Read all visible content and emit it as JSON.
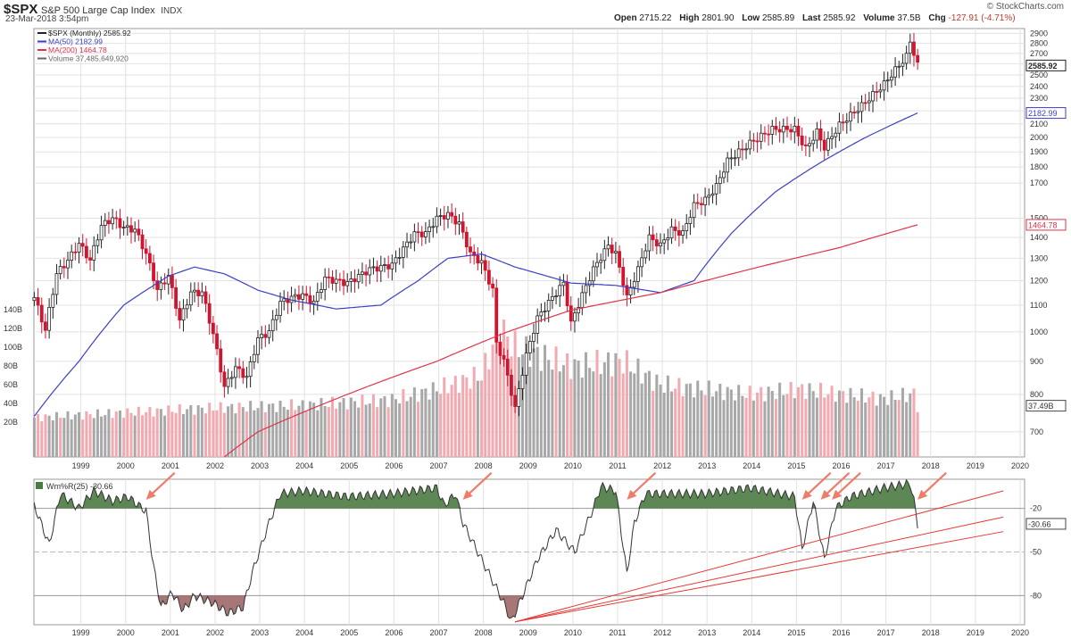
{
  "header": {
    "symbol": "$SPX",
    "name": "S&P 500 Large Cap Index",
    "exchange": "INDX",
    "timestamp": "23-Mar-2018 3:54pm",
    "brand": "© StockCharts.com",
    "open_label": "Open",
    "open": "2715.22",
    "high_label": "High",
    "high": "2801.90",
    "low_label": "Low",
    "low": "2585.89",
    "last_label": "Last",
    "last": "2585.92",
    "volume_label": "Volume",
    "volume": "37.5B",
    "chg_label": "Chg",
    "chg": "-127.91 (-4.71%)"
  },
  "colors": {
    "up_candle": "#222222",
    "down_candle": "#d0152f",
    "ma50": "#3a3fc4",
    "ma200": "#e0334a",
    "volume_up": "#a8a8a8",
    "volume_down": "#f2aab0",
    "willr_fill": "#4c7a44",
    "willr_low_fill": "#8a4a4a",
    "annotation": "#ef7b6a",
    "trendline": "#e53935"
  },
  "chart_data": [
    {
      "type": "candlestick",
      "title": "$SPX (Monthly) 2585.92",
      "legend": [
        {
          "text": "$SPX (Monthly) 2585.92"
        },
        {
          "text": "MA(50) 2182.99"
        },
        {
          "text": "MA(200) 1464.78"
        },
        {
          "text": "Volume 37,485,649,920"
        }
      ],
      "x_ticks": [
        "1999",
        "2000",
        "2001",
        "2002",
        "2003",
        "2004",
        "2005",
        "2006",
        "2007",
        "2008",
        "2009",
        "2010",
        "2011",
        "2012",
        "2013",
        "2014",
        "2015",
        "2016",
        "2017",
        "2018",
        "2019",
        "2020"
      ],
      "y_scale": "log",
      "y_ticks": [
        700,
        800,
        900,
        1000,
        1100,
        1200,
        1300,
        1400,
        1500,
        1700,
        1800,
        1900,
        2000,
        2100,
        2200,
        2300,
        2400,
        2500,
        2600,
        2700,
        2800,
        2900
      ],
      "ylim": [
        640,
        2950
      ],
      "price_tags": [
        "2585.92",
        "2182.99",
        "1464.78"
      ],
      "price_path": [
        [
          "1998-06",
          1130
        ],
        [
          "1998-09",
          1005
        ],
        [
          "1998-12",
          1230
        ],
        [
          "1999-03",
          1290
        ],
        [
          "1999-06",
          1370
        ],
        [
          "1999-09",
          1290
        ],
        [
          "1999-12",
          1460
        ],
        [
          "2000-03",
          1500
        ],
        [
          "2000-06",
          1450
        ],
        [
          "2000-09",
          1440
        ],
        [
          "2000-12",
          1320
        ],
        [
          "2001-03",
          1160
        ],
        [
          "2001-06",
          1220
        ],
        [
          "2001-09",
          1040
        ],
        [
          "2001-12",
          1150
        ],
        [
          "2002-03",
          1150
        ],
        [
          "2002-06",
          990
        ],
        [
          "2002-09",
          820
        ],
        [
          "2002-12",
          880
        ],
        [
          "2003-03",
          850
        ],
        [
          "2003-06",
          975
        ],
        [
          "2003-09",
          1000
        ],
        [
          "2003-12",
          1110
        ],
        [
          "2004-03",
          1130
        ],
        [
          "2004-06",
          1140
        ],
        [
          "2004-09",
          1110
        ],
        [
          "2004-12",
          1210
        ],
        [
          "2005-06",
          1190
        ],
        [
          "2005-12",
          1250
        ],
        [
          "2006-06",
          1270
        ],
        [
          "2006-12",
          1420
        ],
        [
          "2007-03",
          1420
        ],
        [
          "2007-06",
          1500
        ],
        [
          "2007-09",
          1520
        ],
        [
          "2007-12",
          1470
        ],
        [
          "2008-03",
          1320
        ],
        [
          "2008-06",
          1280
        ],
        [
          "2008-09",
          1160
        ],
        [
          "2008-10",
          960
        ],
        [
          "2008-12",
          900
        ],
        [
          "2009-03",
          760
        ],
        [
          "2009-06",
          920
        ],
        [
          "2009-09",
          1050
        ],
        [
          "2009-12",
          1110
        ],
        [
          "2010-04",
          1190
        ],
        [
          "2010-06",
          1030
        ],
        [
          "2010-09",
          1140
        ],
        [
          "2010-12",
          1250
        ],
        [
          "2011-04",
          1360
        ],
        [
          "2011-06",
          1320
        ],
        [
          "2011-09",
          1130
        ],
        [
          "2011-12",
          1250
        ],
        [
          "2012-03",
          1400
        ],
        [
          "2012-06",
          1360
        ],
        [
          "2012-09",
          1440
        ],
        [
          "2012-12",
          1420
        ],
        [
          "2013-03",
          1570
        ],
        [
          "2013-06",
          1600
        ],
        [
          "2013-09",
          1680
        ],
        [
          "2013-12",
          1840
        ],
        [
          "2014-06",
          1960
        ],
        [
          "2014-12",
          2060
        ],
        [
          "2015-06",
          2060
        ],
        [
          "2015-09",
          1920
        ],
        [
          "2015-12",
          2040
        ],
        [
          "2016-02",
          1930
        ],
        [
          "2016-06",
          2090
        ],
        [
          "2016-12",
          2240
        ],
        [
          "2017-06",
          2420
        ],
        [
          "2017-12",
          2670
        ],
        [
          "2018-01",
          2820
        ],
        [
          "2018-03",
          2586
        ]
      ],
      "ma50_path": [
        [
          "1998-06",
          740
        ],
        [
          "1999-06",
          900
        ],
        [
          "2000-06",
          1100
        ],
        [
          "2001-06",
          1220
        ],
        [
          "2002-01",
          1260
        ],
        [
          "2002-09",
          1230
        ],
        [
          "2003-06",
          1160
        ],
        [
          "2004-03",
          1120
        ],
        [
          "2005-03",
          1085
        ],
        [
          "2006-03",
          1100
        ],
        [
          "2007-01",
          1200
        ],
        [
          "2007-09",
          1300
        ],
        [
          "2008-06",
          1320
        ],
        [
          "2009-03",
          1260
        ],
        [
          "2010-06",
          1190
        ],
        [
          "2011-06",
          1180
        ],
        [
          "2012-06",
          1150
        ],
        [
          "2013-03",
          1200
        ],
        [
          "2014-01",
          1420
        ],
        [
          "2015-01",
          1650
        ],
        [
          "2016-01",
          1830
        ],
        [
          "2017-01",
          2000
        ],
        [
          "2018-03",
          2183
        ]
      ],
      "ma200_path": [
        [
          "2002-09",
          640
        ],
        [
          "2003-06",
          700
        ],
        [
          "2005-06",
          800
        ],
        [
          "2007-06",
          900
        ],
        [
          "2009-01",
          1000
        ],
        [
          "2010-06",
          1080
        ],
        [
          "2012-06",
          1150
        ],
        [
          "2014-06",
          1250
        ],
        [
          "2016-06",
          1350
        ],
        [
          "2018-03",
          1465
        ]
      ],
      "volume_axis_ticks": [
        "20B",
        "40B",
        "60B",
        "80B",
        "100B",
        "120B",
        "140B"
      ],
      "volume_last_tag": "37.49B",
      "volume_path": [
        [
          "1998-06",
          25
        ],
        [
          "2000-06",
          30
        ],
        [
          "2002-06",
          35
        ],
        [
          "2004-06",
          38
        ],
        [
          "2006-06",
          44
        ],
        [
          "2007-06",
          55
        ],
        [
          "2008-06",
          70
        ],
        [
          "2008-11",
          120
        ],
        [
          "2009-03",
          100
        ],
        [
          "2010-06",
          80
        ],
        [
          "2011-08",
          85
        ],
        [
          "2012-06",
          60
        ],
        [
          "2013-06",
          55
        ],
        [
          "2014-06",
          50
        ],
        [
          "2015-08",
          55
        ],
        [
          "2016-06",
          50
        ],
        [
          "2017-06",
          45
        ],
        [
          "2018-02",
          50
        ],
        [
          "2018-03",
          37.5
        ]
      ]
    },
    {
      "type": "line",
      "title": "Wm%R(25) -30.66",
      "indicator": "Williams %R (25)",
      "ylim": [
        -100,
        0
      ],
      "y_ticks": [
        -20,
        -50,
        -80
      ],
      "last_value_tag": "-30.66",
      "path": [
        [
          "1998-06",
          -18
        ],
        [
          "1998-10",
          -45
        ],
        [
          "1999-01",
          -10
        ],
        [
          "1999-06",
          -20
        ],
        [
          "1999-10",
          -8
        ],
        [
          "2000-03",
          -15
        ],
        [
          "2000-07",
          -12
        ],
        [
          "2000-12",
          -22
        ],
        [
          "2001-02",
          -60
        ],
        [
          "2001-04",
          -88
        ],
        [
          "2001-07",
          -78
        ],
        [
          "2001-10",
          -90
        ],
        [
          "2002-01",
          -80
        ],
        [
          "2002-06",
          -85
        ],
        [
          "2002-10",
          -92
        ],
        [
          "2003-02",
          -88
        ],
        [
          "2003-05",
          -60
        ],
        [
          "2003-09",
          -30
        ],
        [
          "2003-12",
          -10
        ],
        [
          "2004-06",
          -8
        ],
        [
          "2005-06",
          -12
        ],
        [
          "2006-06",
          -10
        ],
        [
          "2007-06",
          -6
        ],
        [
          "2007-08",
          -18
        ],
        [
          "2007-11",
          -10
        ],
        [
          "2008-01",
          -30
        ],
        [
          "2008-06",
          -55
        ],
        [
          "2008-09",
          -70
        ],
        [
          "2008-12",
          -85
        ],
        [
          "2009-02",
          -98
        ],
        [
          "2009-05",
          -80
        ],
        [
          "2009-09",
          -55
        ],
        [
          "2010-02",
          -35
        ],
        [
          "2010-07",
          -50
        ],
        [
          "2010-12",
          -20
        ],
        [
          "2011-02",
          -5
        ],
        [
          "2011-06",
          -8
        ],
        [
          "2011-09",
          -65
        ],
        [
          "2011-11",
          -30
        ],
        [
          "2012-02",
          -10
        ],
        [
          "2013-06",
          -10
        ],
        [
          "2014-06",
          -6
        ],
        [
          "2015-06",
          -12
        ],
        [
          "2015-08",
          -48
        ],
        [
          "2015-11",
          -15
        ],
        [
          "2016-02",
          -55
        ],
        [
          "2016-05",
          -20
        ],
        [
          "2016-09",
          -12
        ],
        [
          "2017-06",
          -6
        ],
        [
          "2018-01",
          -3
        ],
        [
          "2018-02",
          -15
        ],
        [
          "2018-03",
          -31
        ]
      ],
      "trendlines_from": [
        "2009-03",
        -98
      ],
      "trendlines_to": [
        [
          "2020-02",
          -8
        ],
        [
          "2020-02",
          -26
        ],
        [
          "2020-02",
          -36
        ]
      ],
      "arrows_at": [
        "2000-12",
        "2008-01",
        "2011-09",
        "2015-08",
        "2016-01",
        "2016-04",
        "2018-03"
      ]
    }
  ]
}
